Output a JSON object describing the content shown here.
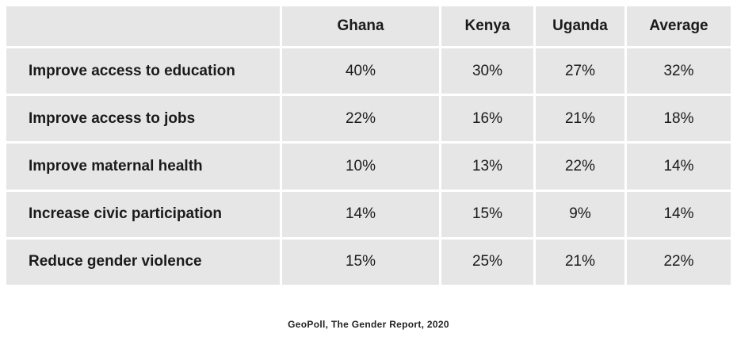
{
  "table": {
    "columns": [
      "Ghana",
      "Kenya",
      "Uganda",
      "Average"
    ],
    "rows": [
      {
        "label": "Improve access to education",
        "values": [
          "40%",
          "30%",
          "27%",
          "32%"
        ]
      },
      {
        "label": "Improve access to jobs",
        "values": [
          "22%",
          "16%",
          "21%",
          "18%"
        ]
      },
      {
        "label": "Improve maternal health",
        "values": [
          "10%",
          "13%",
          "22%",
          "14%"
        ]
      },
      {
        "label": "Increase civic participation",
        "values": [
          "14%",
          "15%",
          "9%",
          "14%"
        ]
      },
      {
        "label": "Reduce gender violence",
        "values": [
          "15%",
          "25%",
          "21%",
          "22%"
        ]
      }
    ]
  },
  "caption": "GeoPoll, The Gender Report, 2020",
  "colors": {
    "cell_bg": "#e6e6e6",
    "gutter": "#ffffff",
    "text": "#1a1a1a",
    "caption_text": "#222222"
  },
  "chart_data": {
    "type": "table",
    "title": "",
    "categories": [
      "Improve access to education",
      "Improve access to jobs",
      "Improve maternal health",
      "Increase civic participation",
      "Reduce gender violence"
    ],
    "series": [
      {
        "name": "Ghana",
        "values": [
          40,
          22,
          10,
          14,
          15
        ]
      },
      {
        "name": "Kenya",
        "values": [
          30,
          16,
          13,
          15,
          25
        ]
      },
      {
        "name": "Uganda",
        "values": [
          27,
          21,
          22,
          9,
          21
        ]
      },
      {
        "name": "Average",
        "values": [
          32,
          18,
          14,
          14,
          22
        ]
      }
    ],
    "unit": "%",
    "source": "GeoPoll, The Gender Report, 2020"
  }
}
